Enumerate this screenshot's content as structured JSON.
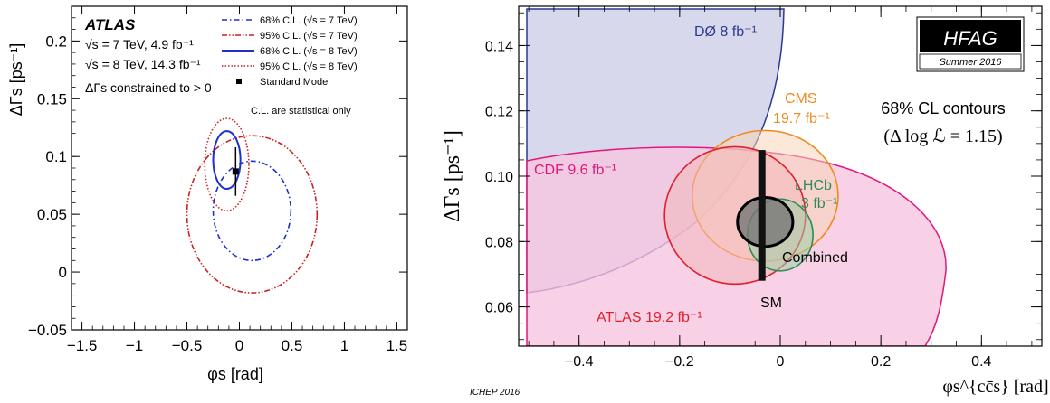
{
  "chart_data": [
    {
      "type": "contour",
      "panel": "left",
      "title": "ATLAS",
      "info_lines": [
        "√s = 7 TeV, 4.9 fb⁻¹",
        "√s = 8 TeV, 14.3 fb⁻¹",
        "ΔΓs constrained to > 0"
      ],
      "xlabel": "φs [rad]",
      "ylabel": "ΔΓs [ps⁻¹]",
      "xlim": [
        -1.6,
        1.6
      ],
      "ylim": [
        -0.05,
        0.23
      ],
      "xticks": [
        -1.5,
        -1,
        -0.5,
        0,
        0.5,
        1,
        1.5
      ],
      "xtick_labels": [
        "−1.5",
        "−1",
        "−0.5",
        "0",
        "0.5",
        "1",
        "1.5"
      ],
      "yticks": [
        -0.05,
        0,
        0.05,
        0.1,
        0.15,
        0.2
      ],
      "ytick_labels": [
        "−0.05",
        "0",
        "0.05",
        "0.1",
        "0.15",
        "0.2"
      ],
      "legend": [
        {
          "label": "68% C.L. (√s = 7 TeV)",
          "color": "#1f2fcc",
          "style": "dashdot"
        },
        {
          "label": "95% C.L. (√s = 7 TeV)",
          "color": "#cc2222",
          "style": "dashdotdot"
        },
        {
          "label": "68% C.L. (√s = 8 TeV)",
          "color": "#1f2fcc",
          "style": "solid"
        },
        {
          "label": "95% C.L. (√s = 8 TeV)",
          "color": "#cc2222",
          "style": "dotted"
        },
        {
          "label": "Standard Model",
          "color": "#000000",
          "style": "marker"
        }
      ],
      "note": "C.L. are statistical only",
      "contours": [
        {
          "name": "68% C.L. (√s = 7 TeV)",
          "cx": 0.12,
          "cy": 0.053,
          "rx": 0.37,
          "ry": 0.043,
          "color": "#1f2fcc",
          "style": "dashdot"
        },
        {
          "name": "95% C.L. (√s = 7 TeV)",
          "cx": 0.12,
          "cy": 0.05,
          "rx": 0.62,
          "ry": 0.068,
          "color": "#cc2222",
          "style": "dashdotdot"
        },
        {
          "name": "68% C.L. (√s = 8 TeV)",
          "cx": -0.12,
          "cy": 0.097,
          "rx": 0.13,
          "ry": 0.025,
          "color": "#1f2fcc",
          "style": "solid"
        },
        {
          "name": "95% C.L. (√s = 8 TeV)",
          "cx": -0.12,
          "cy": 0.093,
          "rx": 0.21,
          "ry": 0.04,
          "color": "#cc2222",
          "style": "dotted"
        }
      ],
      "standard_model": {
        "phi": -0.036,
        "dgamma": 0.087,
        "dgamma_err": 0.021
      }
    },
    {
      "type": "contour",
      "panel": "right",
      "xlabel": "φs^{cc̄s} [rad]",
      "ylabel": "ΔΓs [ps⁻¹]",
      "xlim": [
        -0.52,
        0.52
      ],
      "ylim": [
        0.048,
        0.152
      ],
      "xticks": [
        -0.4,
        -0.2,
        0,
        0.2,
        0.4
      ],
      "xtick_labels": [
        "−0.4",
        "−0.2",
        "0",
        "0.2",
        "0.4"
      ],
      "yticks": [
        0.06,
        0.08,
        0.1,
        0.12,
        0.14
      ],
      "ytick_labels": [
        "0.06",
        "0.08",
        "0.10",
        "0.12",
        "0.14"
      ],
      "hfag_label": "HFAG",
      "hfag_sub": "Summer 2016",
      "cl_text": "68% CL contours",
      "cl_formula": "(Δ log ℒ = 1.15)",
      "footer": "ICHEP 2016",
      "experiments": [
        {
          "name": "DØ 8 fb⁻¹",
          "color": "#2b3a8f",
          "fill": "#c9cbe6"
        },
        {
          "name": "CDF 9.6 fb⁻¹",
          "color": "#e0187a",
          "fill": "#f7c4df"
        },
        {
          "name": "CMS",
          "extra": "19.7 fb⁻¹",
          "color": "#f08a1c",
          "fill": "#f7d6b8"
        },
        {
          "name": "ATLAS 19.2 fb⁻¹",
          "color": "#e0202a",
          "fill": "#f2b8bb"
        },
        {
          "name": "LHCb",
          "extra": "3 fb⁻¹",
          "color": "#2e8b57",
          "fill": "#9ccfa8"
        },
        {
          "name": "Combined",
          "color": "#000000",
          "fill": "#777777"
        }
      ],
      "sm_label": "SM",
      "standard_model": {
        "phi": -0.0365,
        "dgamma": 0.088,
        "dgamma_err": 0.02
      },
      "contours": [
        {
          "name": "CMS",
          "cx": -0.03,
          "cy": 0.094,
          "rx": 0.145,
          "ry": 0.02
        },
        {
          "name": "ATLAS",
          "cx": -0.09,
          "cy": 0.088,
          "rx": 0.14,
          "ry": 0.021
        },
        {
          "name": "LHCb",
          "cx": 0.0,
          "cy": 0.082,
          "rx": 0.065,
          "ry": 0.011
        },
        {
          "name": "Combined",
          "cx": -0.03,
          "cy": 0.086,
          "rx": 0.055,
          "ry": 0.0075
        }
      ]
    }
  ]
}
